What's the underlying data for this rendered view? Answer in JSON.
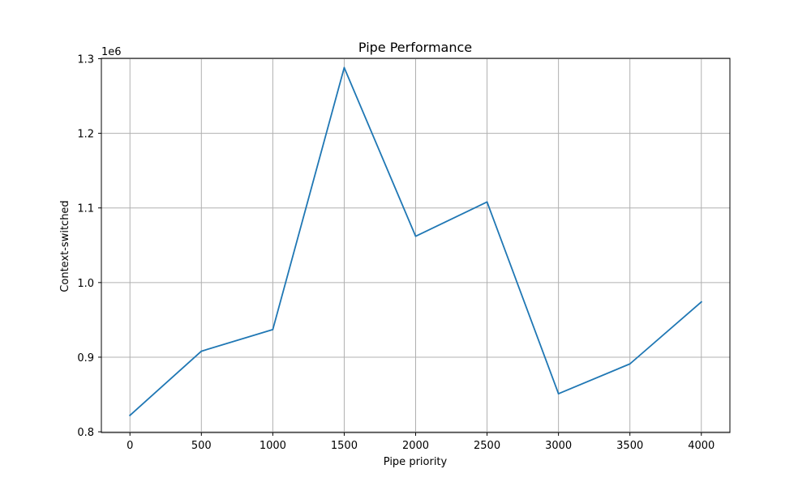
{
  "chart_data": {
    "type": "line",
    "title": "Pipe Performance",
    "xlabel": "Pipe priority",
    "ylabel": "Context-switched",
    "y_offset_label": "1e6",
    "x": [
      0,
      500,
      1000,
      1500,
      2000,
      2500,
      3000,
      3500,
      4000
    ],
    "series": [
      {
        "values": [
          822000,
          908000,
          937000,
          1288000,
          1062000,
          1108000,
          851000,
          891000,
          974000
        ],
        "color": "#1f77b4"
      }
    ],
    "xlim": [
      -200,
      4200
    ],
    "ylim": [
      799000,
      1300500
    ],
    "x_ticks": [
      0,
      500,
      1000,
      1500,
      2000,
      2500,
      3000,
      3500,
      4000
    ],
    "x_tick_labels": [
      "0",
      "500",
      "1000",
      "1500",
      "2000",
      "2500",
      "3000",
      "3500",
      "4000"
    ],
    "y_ticks": [
      800000,
      900000,
      1000000,
      1100000,
      1200000,
      1300000
    ],
    "y_tick_labels": [
      "0.8",
      "0.9",
      "1.0",
      "1.1",
      "1.2",
      "1.3"
    ],
    "grid": true,
    "legend": "none"
  }
}
